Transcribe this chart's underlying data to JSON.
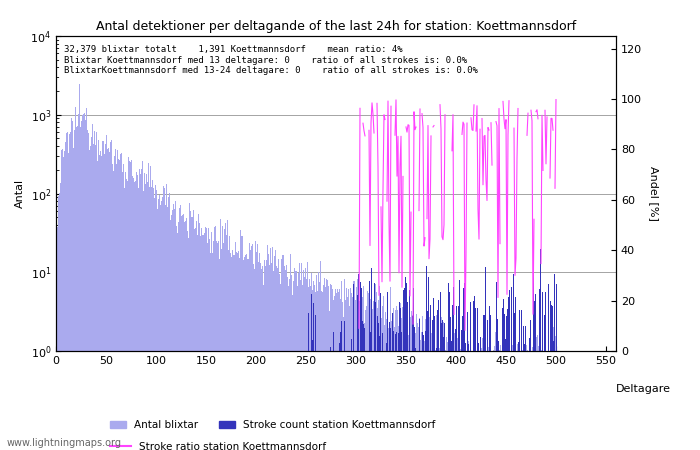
{
  "title": "Antal detektioner per deltagande of the last 24h for station: Koettmannsdorf",
  "xlabel": "Deltagare",
  "ylabel_left": "Antal",
  "ylabel_right": "Andel [%]",
  "annotation_lines": [
    "32,379 blixtar totalt    1,391 Koettmannsdorf    mean ratio: 4%",
    "Blixtar Koettmannsdorf med 13 deltagare: 0    ratio of all strokes is: 0.0%",
    "BlixtarKoettmannsdorf med 13-24 deltagare: 0    ratio of all strokes is: 0.0%"
  ],
  "watermark": "www.lightningmaps.org",
  "bar_color_light": "#aaaaee",
  "bar_color_dark": "#3333bb",
  "line_color": "#ff44ff",
  "xlim": [
    0,
    560
  ],
  "ylim_right": [
    0,
    125
  ],
  "right_yticks": [
    0,
    20,
    40,
    60,
    80,
    100,
    120
  ],
  "legend_labels": [
    "Antal blixtar",
    "Stroke count station Koettmannsdorf",
    "Stroke ratio station Koettmannsdorf"
  ],
  "figsize": [
    7.0,
    4.5
  ],
  "dpi": 100
}
